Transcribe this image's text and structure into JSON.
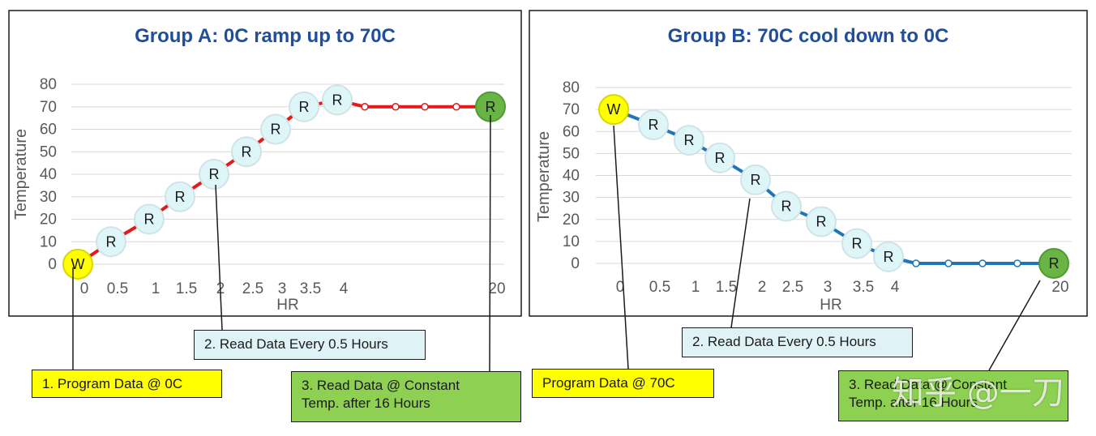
{
  "colors": {
    "title": "#1f4e9c",
    "grid": "#d9d9d9",
    "tick": "#595959",
    "lineA": "#e3191b",
    "lineB": "#1f75b6",
    "marker_read": "#dff6f8",
    "marker_write": "#ffff00",
    "marker_final": "#6ab445"
  },
  "chart_data": [
    {
      "type": "line",
      "title": "Group A: 0C ramp up to 70C",
      "xlabel": "HR",
      "ylabel": "Temperature",
      "ylim": [
        0,
        80
      ],
      "yticks": [
        "0",
        "10",
        "20",
        "30",
        "40",
        "50",
        "60",
        "70",
        "80"
      ],
      "xticks": [
        "0",
        "0.5",
        "1",
        "1.5",
        "2",
        "2.5",
        "3",
        "3.5",
        "4",
        "20"
      ],
      "series": [
        {
          "name": "Group A",
          "x": [
            "0",
            "0.5",
            "1",
            "1.5",
            "2",
            "2.5",
            "3",
            "3.5",
            "4",
            "",
            "",
            "",
            "",
            "20"
          ],
          "values": [
            0,
            10,
            20,
            30,
            40,
            50,
            60,
            70,
            73,
            70,
            70,
            70,
            70,
            70
          ],
          "markers": [
            "W",
            "R",
            "R",
            "R",
            "R",
            "R",
            "R",
            "R",
            "R",
            "",
            "",
            "",
            "",
            "R"
          ]
        }
      ]
    },
    {
      "type": "line",
      "title": "Group B: 70C cool down to 0C",
      "xlabel": "HR",
      "ylabel": "Temperature",
      "ylim": [
        0,
        80
      ],
      "yticks": [
        "0",
        "10",
        "20",
        "30",
        "40",
        "50",
        "60",
        "70",
        "80"
      ],
      "xticks": [
        "0",
        "0.5",
        "1",
        "1.5",
        "2",
        "2.5",
        "3",
        "3.5",
        "4",
        "20"
      ],
      "series": [
        {
          "name": "Group B",
          "x": [
            "0",
            "0.5",
            "1",
            "1.5",
            "2",
            "2.5",
            "3",
            "3.5",
            "4",
            "",
            "",
            "",
            "",
            "20"
          ],
          "values": [
            70,
            63,
            56,
            48,
            38,
            26,
            19,
            9,
            3,
            0,
            0,
            0,
            0,
            0
          ],
          "markers": [
            "W",
            "R",
            "R",
            "R",
            "R",
            "R",
            "R",
            "R",
            "R",
            "",
            "",
            "",
            "",
            "R"
          ]
        }
      ]
    }
  ],
  "callouts": {
    "a_program": "1. Program Data @ 0C",
    "a_read": "2. Read Data Every 0.5 Hours",
    "a_const_line1": "3. Read Data @ Constant",
    "a_const_line2": "Temp. after 16 Hours",
    "b_program": "Program Data @ 70C",
    "b_read": "2. Read Data Every 0.5 Hours",
    "b_const_line1": "3. Read Data @ Constant",
    "b_const_line2": "Temp. after 16 Hours"
  },
  "watermark": "知乎 @一刀"
}
